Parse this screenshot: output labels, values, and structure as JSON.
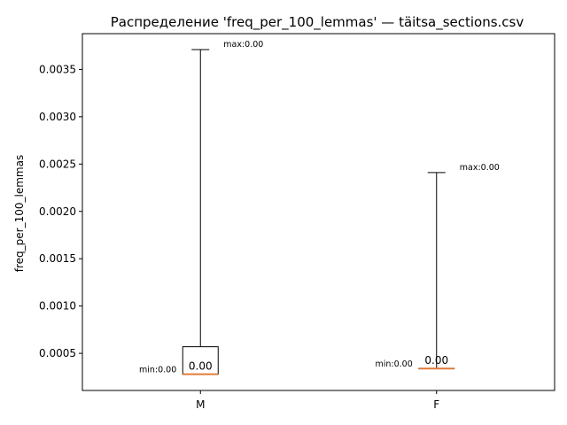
{
  "chart_data": {
    "type": "box",
    "title": "Распределение 'freq_per_100_lemmas' — täitsa_sections.csv",
    "xlabel": "",
    "ylabel": "freq_per_100_lemmas",
    "ylim": [
      0.000108,
      0.003878
    ],
    "yticks": [
      0.0005,
      0.001,
      0.0015,
      0.002,
      0.0025,
      0.003,
      0.0035
    ],
    "ytick_labels": [
      "0.0005",
      "0.0010",
      "0.0015",
      "0.0020",
      "0.0025",
      "0.0030",
      "0.0035"
    ],
    "grid": false,
    "categories": [
      "M",
      "F"
    ],
    "boxes": [
      {
        "category": "M",
        "whisker_low": 0.00028,
        "q1": 0.00028,
        "median": 0.00028,
        "q3": 0.00057,
        "whisker_high": 0.00371,
        "median_label": "0.00",
        "min_label": "min:0.00",
        "max_label": "max:0.00"
      },
      {
        "category": "F",
        "whisker_low": 0.00034,
        "q1": 0.00034,
        "median": 0.00034,
        "q3": 0.00034,
        "whisker_high": 0.00241,
        "median_label": "0.00",
        "min_label": "min:0.00",
        "max_label": "max:0.00"
      }
    ],
    "colors": {
      "median": "#e07b39",
      "box": "#000000"
    }
  }
}
